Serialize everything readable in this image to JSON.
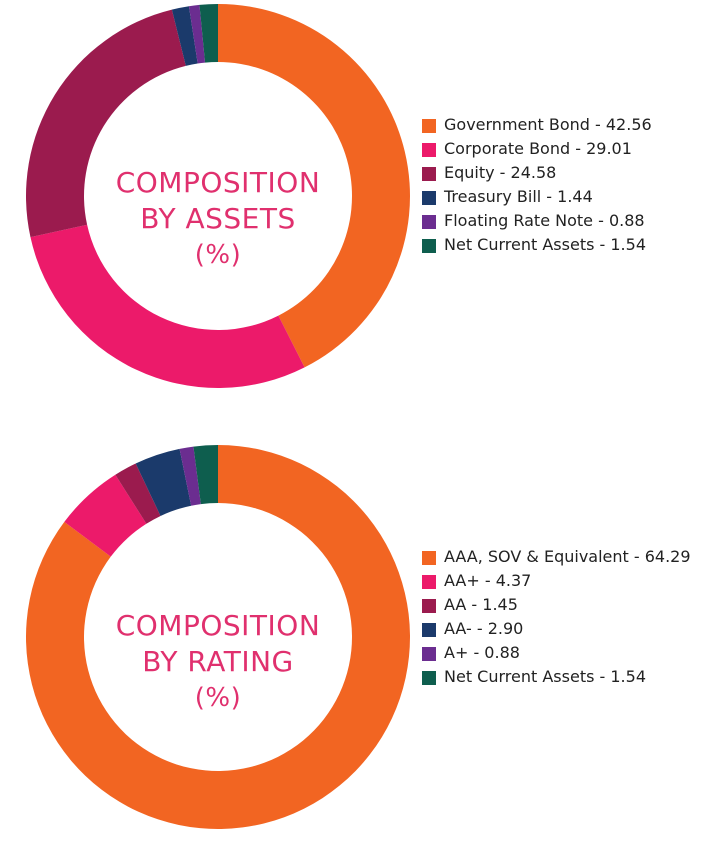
{
  "colors": {
    "orange": "#F26522",
    "pink": "#EC1A6A",
    "maroon": "#9B1B4E",
    "navy": "#1B3A6B",
    "purple": "#6B2D90",
    "teal": "#0E5E4E",
    "center_text": "#E0306E"
  },
  "chart_data": [
    {
      "type": "pie",
      "title_lines": [
        "COMPOSITION",
        "BY ASSETS",
        "(%)"
      ],
      "legend_position": "right",
      "slices": [
        {
          "label": "Government Bond - 42.56",
          "name": "Government Bond",
          "value": 42.56,
          "color": "#F26522"
        },
        {
          "label": "Corporate Bond - 29.01",
          "name": "Corporate Bond",
          "value": 29.01,
          "color": "#EC1A6A"
        },
        {
          "label": "Equity - 24.58",
          "name": "Equity",
          "value": 24.58,
          "color": "#9B1B4E"
        },
        {
          "label": "Treasury Bill - 1.44",
          "name": "Treasury Bill",
          "value": 1.44,
          "color": "#1B3A6B"
        },
        {
          "label": "Floating Rate Note - 0.88",
          "name": "Floating Rate Note",
          "value": 0.88,
          "color": "#6B2D90"
        },
        {
          "label": "Net Current Assets - 1.54",
          "name": "Net Current Assets",
          "value": 1.54,
          "color": "#0E5E4E"
        }
      ]
    },
    {
      "type": "pie",
      "title_lines": [
        "COMPOSITION",
        "BY RATING",
        "(%)"
      ],
      "legend_position": "right",
      "slices": [
        {
          "label": "AAA, SOV & Equivalent - 64.29",
          "name": "AAA, SOV & Equivalent",
          "value": 64.29,
          "color": "#F26522"
        },
        {
          "label": "AA+ - 4.37",
          "name": "AA+",
          "value": 4.37,
          "color": "#EC1A6A"
        },
        {
          "label": "AA - 1.45",
          "name": "AA",
          "value": 1.45,
          "color": "#9B1B4E"
        },
        {
          "label": "AA- - 2.90",
          "name": "AA-",
          "value": 2.9,
          "color": "#1B3A6B"
        },
        {
          "label": "A+ - 0.88",
          "name": "A+",
          "value": 0.88,
          "color": "#6B2D90"
        },
        {
          "label": "Net Current Assets - 1.54",
          "name": "Net Current Assets",
          "value": 1.54,
          "color": "#0E5E4E"
        }
      ]
    }
  ]
}
